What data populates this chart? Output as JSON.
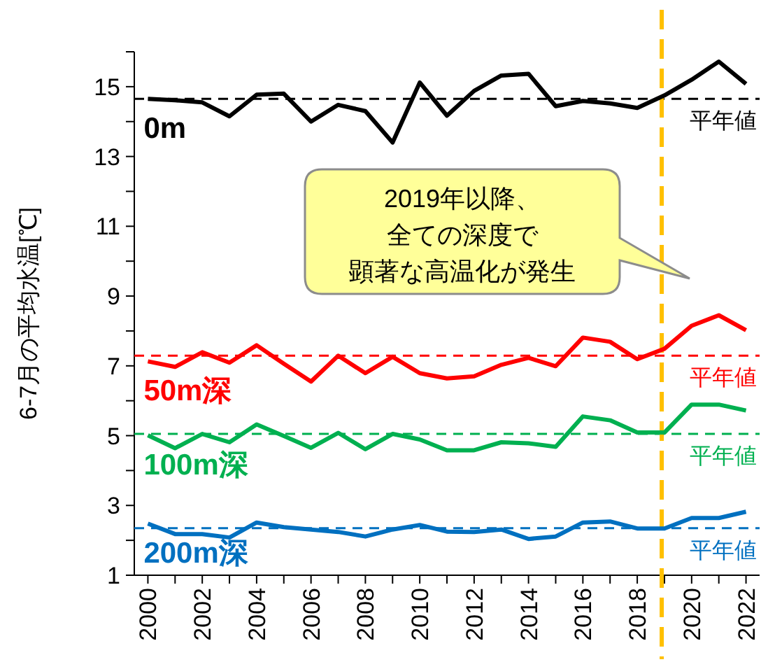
{
  "chart_data": {
    "type": "line",
    "ylabel": "6-7月の平均水温[℃]",
    "x": [
      2000,
      2001,
      2002,
      2003,
      2004,
      2005,
      2006,
      2007,
      2008,
      2009,
      2010,
      2011,
      2012,
      2013,
      2014,
      2015,
      2016,
      2017,
      2018,
      2019,
      2020,
      2021,
      2022
    ],
    "xlim": [
      1999.5,
      2022.5
    ],
    "xticks": [
      2000,
      {
        "value": 2001,
        "label": null
      },
      2002,
      {
        "value": 2003,
        "label": null
      },
      2004,
      {
        "value": 2005,
        "label": null
      },
      2006,
      {
        "value": 2007,
        "label": null
      },
      2008,
      {
        "value": 2009,
        "label": null
      },
      2010,
      {
        "value": 2011,
        "label": null
      },
      2012,
      {
        "value": 2013,
        "label": null
      },
      2014,
      {
        "value": 2015,
        "label": null
      },
      2016,
      {
        "value": 2017,
        "label": null
      },
      2018,
      {
        "value": 2019,
        "label": null
      },
      2020,
      {
        "value": 2021,
        "label": null
      },
      2022
    ],
    "ylim": [
      1,
      16
    ],
    "yticks": [
      1,
      {
        "value": 2,
        "label": null
      },
      3,
      {
        "value": 4,
        "label": null
      },
      5,
      {
        "value": 6,
        "label": null
      },
      7,
      {
        "value": 8,
        "label": null
      },
      9,
      {
        "value": 10,
        "label": null
      },
      11,
      {
        "value": 12,
        "label": null
      },
      13,
      {
        "value": 14,
        "label": null
      },
      15,
      {
        "value": 16,
        "label": null
      }
    ],
    "grid": false,
    "legend": false,
    "marker": "none",
    "line_style": "solid",
    "series": [
      {
        "name": "0m",
        "color": "#000000",
        "values": [
          14.65,
          14.61,
          14.55,
          14.15,
          14.77,
          14.8,
          14.0,
          14.48,
          14.3,
          13.4,
          15.12,
          14.17,
          14.88,
          15.32,
          15.37,
          14.44,
          14.59,
          14.52,
          14.39,
          14.75,
          15.2,
          15.72,
          15.08
        ]
      },
      {
        "name": "50m深",
        "color": "#ff0000",
        "values": [
          7.13,
          6.97,
          7.39,
          7.09,
          7.59,
          7.06,
          6.55,
          7.29,
          6.79,
          7.26,
          6.79,
          6.64,
          6.7,
          7.03,
          7.23,
          6.99,
          7.81,
          7.69,
          7.19,
          7.49,
          8.15,
          8.45,
          8.02
        ]
      },
      {
        "name": "100m深",
        "color": "#00b050",
        "values": [
          5.01,
          4.64,
          5.05,
          4.81,
          5.32,
          4.99,
          4.65,
          5.08,
          4.61,
          5.05,
          4.89,
          4.58,
          4.58,
          4.81,
          4.78,
          4.68,
          5.55,
          5.44,
          5.09,
          5.09,
          5.89,
          5.89,
          5.72
        ]
      },
      {
        "name": "200m深",
        "color": "#0070c0",
        "values": [
          2.48,
          2.18,
          2.18,
          2.08,
          2.51,
          2.38,
          2.31,
          2.24,
          2.11,
          2.31,
          2.44,
          2.25,
          2.24,
          2.31,
          2.04,
          2.11,
          2.51,
          2.54,
          2.34,
          2.34,
          2.64,
          2.64,
          2.82
        ]
      }
    ],
    "ref_lines": [
      {
        "axis": "y",
        "value": 14.65,
        "label": "平年値",
        "color": "#000000",
        "line_style": "dashed"
      },
      {
        "axis": "y",
        "value": 7.29,
        "label": "平年値",
        "color": "#ff0000",
        "line_style": "dashed"
      },
      {
        "axis": "y",
        "value": 5.05,
        "label": "平年値",
        "color": "#00b050",
        "line_style": "dashed"
      },
      {
        "axis": "y",
        "value": 2.35,
        "label": "平年値",
        "color": "#0070c0",
        "line_style": "dashed"
      },
      {
        "axis": "x",
        "value": 2018.9,
        "label": null,
        "color": "#ffc000",
        "line_style": "dashed"
      }
    ],
    "annotations": [
      "2019年以降、",
      "全ての深度で",
      "顕著な高温化が発生"
    ]
  }
}
